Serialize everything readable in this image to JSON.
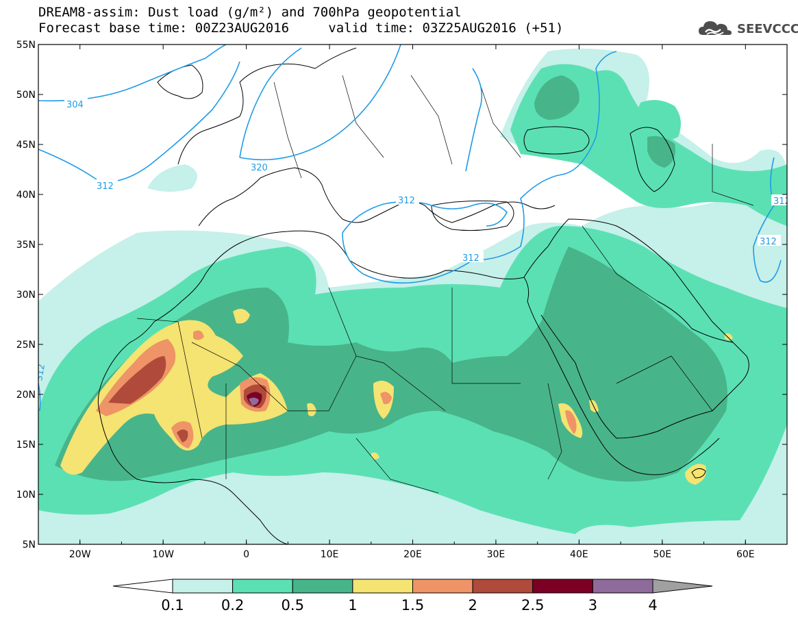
{
  "title": {
    "line1": "DREAM8-assim: Dust load (g/m²) and 700hPa geopotential",
    "base_time": "Forecast base time: 00Z23AUG2016",
    "valid_time": "valid time: 03Z25AUG2016 (+51)"
  },
  "logo": {
    "text": "SEEVCCC",
    "icon": "cloud-icon"
  },
  "axes": {
    "lon_range": [
      -25,
      65
    ],
    "lat_range": [
      5,
      55
    ],
    "lat_ticks": [
      "5N",
      "10N",
      "15N",
      "20N",
      "25N",
      "30N",
      "35N",
      "40N",
      "45N",
      "50N",
      "55N"
    ],
    "lon_ticks": [
      "20W",
      "10W",
      "0",
      "10E",
      "20E",
      "30E",
      "40E",
      "50E",
      "60E"
    ]
  },
  "contour_labels": [
    "304",
    "312",
    "320",
    "312",
    "312",
    "312",
    "312",
    "312"
  ],
  "colorbar": {
    "levels": [
      "0.1",
      "0.2",
      "0.5",
      "1",
      "1.5",
      "2",
      "2.5",
      "3",
      "4"
    ],
    "colors": [
      "#c6f0ea",
      "#5be0b4",
      "#48b48a",
      "#f5e372",
      "#ee9466",
      "#b04a3a",
      "#7c0024",
      "#8f6b9c",
      "#a0a0a0"
    ]
  },
  "colors": {
    "contour": "#1e9be6",
    "coast": "#000000"
  }
}
